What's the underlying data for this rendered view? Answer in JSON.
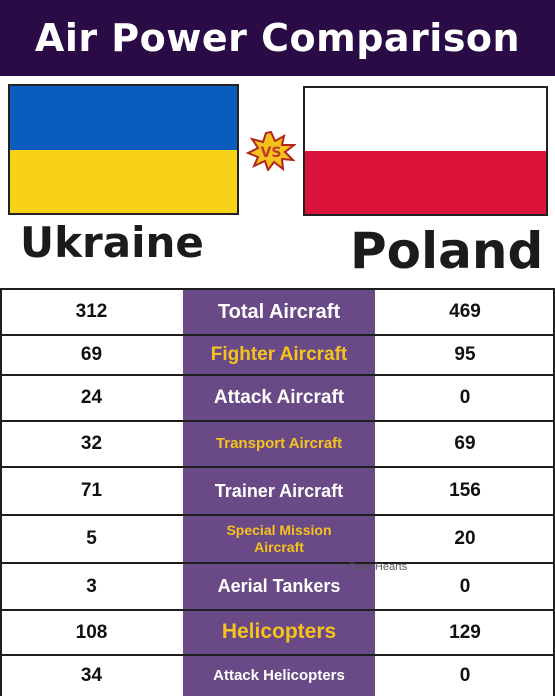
{
  "title": "Air Power Comparison",
  "colors": {
    "title_bg": "#2a0b45",
    "mid_col": "#6a4a86",
    "label_white": "#ffffff",
    "label_yellow": "#f6c21d",
    "ukraine_blue": "#0a5cbf",
    "ukraine_yellow": "#f7d117",
    "poland_white": "#ffffff",
    "poland_red": "#dc143c"
  },
  "vs_label": "VS",
  "countries": {
    "left": "Ukraine",
    "right": "Poland"
  },
  "rows": [
    {
      "left": "312",
      "label": "Total Aircraft",
      "right": "469",
      "label_color": "white"
    },
    {
      "left": "69",
      "label": "Fighter Aircraft",
      "right": "95",
      "label_color": "yellow"
    },
    {
      "left": "24",
      "label": "Attack Aircraft",
      "right": "0",
      "label_color": "white"
    },
    {
      "left": "32",
      "label": "Transport Aircraft",
      "right": "69",
      "label_color": "yellow"
    },
    {
      "left": "71",
      "label": "Trainer Aircraft",
      "right": "156",
      "label_color": "white"
    },
    {
      "left": "5",
      "label": "Special Mission\nAircraft",
      "right": "20",
      "label_color": "yellow"
    },
    {
      "left": "3",
      "label": "Aerial Tankers",
      "right": "0",
      "label_color": "white"
    },
    {
      "left": "108",
      "label": "Helicopters",
      "right": "129",
      "label_color": "yellow"
    },
    {
      "left": "34",
      "label": "Attack Helicopters",
      "right": "0",
      "label_color": "white"
    }
  ],
  "watermark": "Care Hearts"
}
